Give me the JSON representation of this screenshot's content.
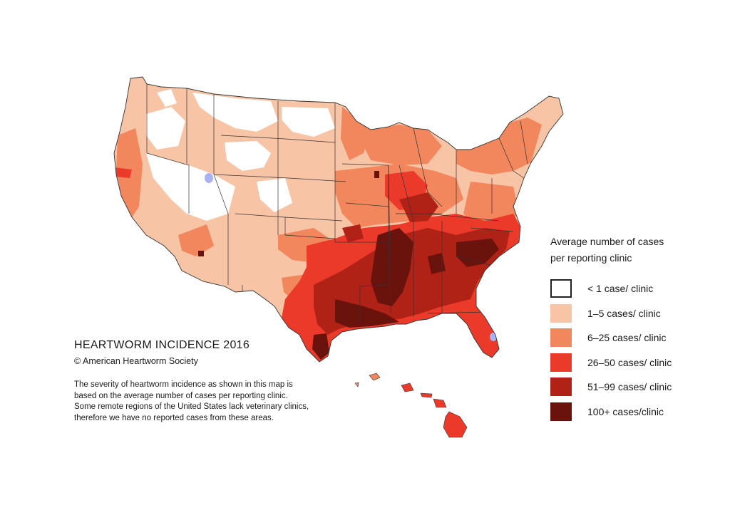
{
  "map": {
    "title": "HEARTWORM INCIDENCE 2016",
    "copyright": "© American Heartworm Society",
    "note": "The severity of heartworm incidence as shown in this map is based on the average number of cases per reporting clinic.  Some remote regions of the United States lack veterinary clinics, therefore we have no reported cases from these areas."
  },
  "legend": {
    "title_line1": "Average number of cases",
    "title_line2": "per reporting clinic",
    "items": [
      {
        "label": "< 1 case/ clinic",
        "color": "#ffffff"
      },
      {
        "label": "1–5 cases/ clinic",
        "color": "#f8c4a6"
      },
      {
        "label": "6–25  cases/ clinic",
        "color": "#f2865c"
      },
      {
        "label": "26–50  cases/ clinic",
        "color": "#ec3a2a"
      },
      {
        "label": "51–99 cases/ clinic",
        "color": "#b02116"
      },
      {
        "label": "100+ cases/clinic",
        "color": "#6a120c"
      }
    ]
  },
  "colors": {
    "lakes": "#a9b3f2",
    "borders": "#333333"
  }
}
